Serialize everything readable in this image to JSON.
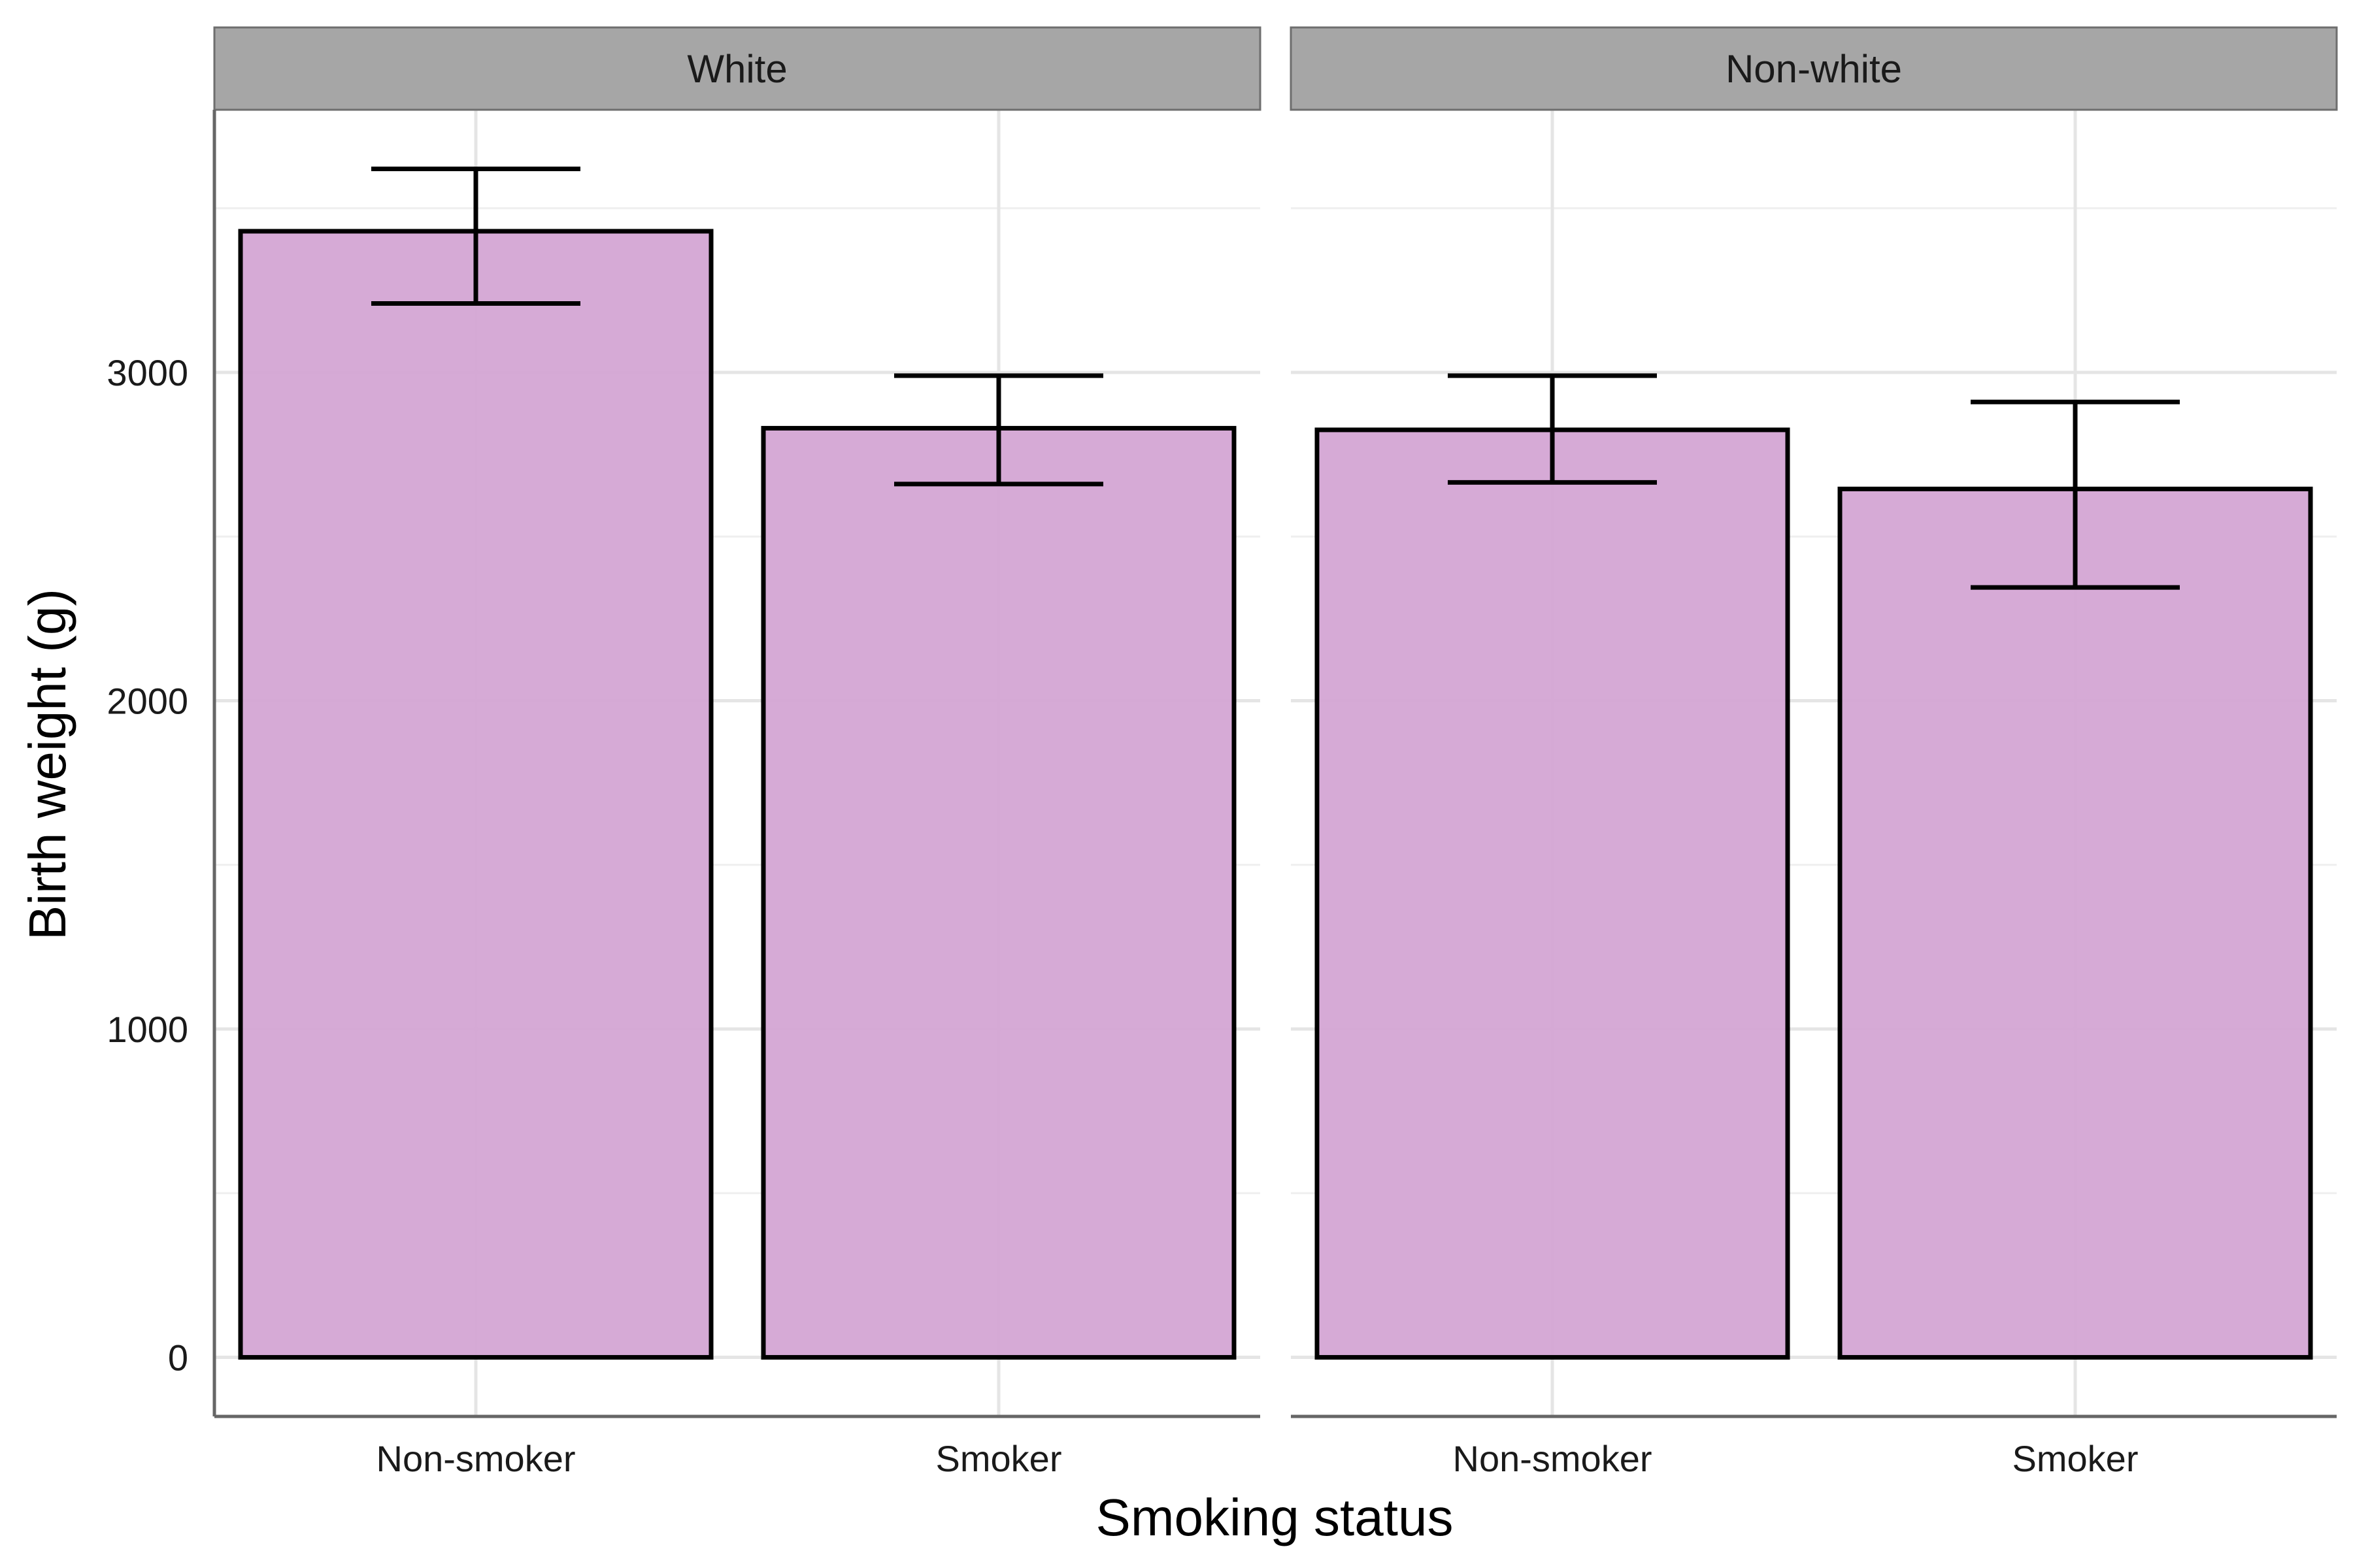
{
  "colors": {
    "bar_fill": "#d4a5d4",
    "bar_stroke": "#000000",
    "strip_fill": "#a6a6a6",
    "strip_stroke": "#6e6e6e",
    "grid_major": "#e5e5e5",
    "grid_minor": "#efefef",
    "axis_line": "#666666"
  },
  "chart_data": {
    "type": "bar",
    "xlabel": "Smoking status",
    "ylabel": "Birth weight (g)",
    "ylim": [
      -180,
      3800
    ],
    "yticks": [
      0,
      1000,
      2000,
      3000
    ],
    "grid": true,
    "categories": [
      "Non-smoker",
      "Smoker"
    ],
    "panels": [
      {
        "name": "White",
        "values": [
          3430,
          2830
        ],
        "error_low": [
          3210,
          2660
        ],
        "error_high": [
          3620,
          2990
        ]
      },
      {
        "name": "Non-white",
        "values": [
          2825,
          2645
        ],
        "error_low": [
          2665,
          2345
        ],
        "error_high": [
          2990,
          2910
        ]
      }
    ]
  }
}
